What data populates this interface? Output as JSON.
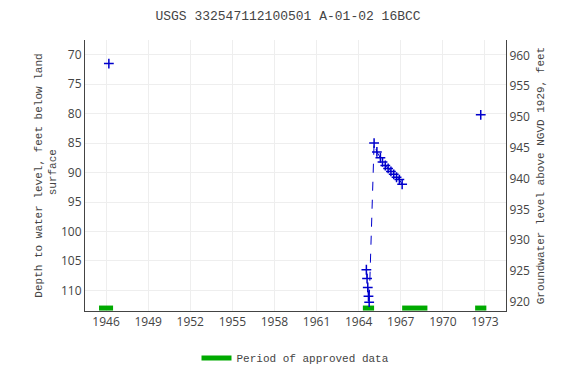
{
  "chart_data": {
    "type": "scatter",
    "title": "USGS 332547112100501 A-01-02 16BCC",
    "y_label": "Depth to water level, feet below land\n surface",
    "y2_label": "Groundwater level above NGVD 1929, feet",
    "xlim": [
      1944.5,
      1974.5
    ],
    "xticks": [
      1946,
      1949,
      1952,
      1955,
      1958,
      1961,
      1964,
      1967,
      1970,
      1973
    ],
    "ylim": [
      113.5,
      67.5
    ],
    "yticks": [
      70,
      75,
      80,
      85,
      90,
      95,
      100,
      105,
      110
    ],
    "y2lim": [
      918.5,
      962.5
    ],
    "y2ticks": [
      960,
      955,
      950,
      945,
      940,
      935,
      930,
      925,
      920
    ],
    "grid": true,
    "legend": "bottom",
    "series": [
      {
        "name": "Period of approved data",
        "type": "bar",
        "orientation": "horizontal",
        "color": "#00aa00",
        "y": 113.0,
        "x_start": [
          1945.5,
          1964.3,
          1967.1,
          1972.3
        ],
        "x_end": [
          1946.5,
          1965.1,
          1968.9,
          1973.1
        ]
      },
      {
        "type": "line",
        "line_style": "dashed",
        "marker": "plus",
        "color": "#0000cc",
        "x": [
          1964.55,
          1964.6,
          1964.65,
          1964.7,
          1964.75,
          1965.1,
          1965.3,
          1965.55,
          1965.7,
          1965.9,
          1966.1,
          1966.3,
          1966.5,
          1966.7,
          1966.9,
          1967.1
        ],
        "values": [
          106.5,
          108.0,
          109.5,
          111.0,
          112.0,
          85.0,
          86.5,
          87.5,
          88.2,
          88.8,
          89.3,
          89.8,
          90.3,
          90.8,
          91.2,
          92.0
        ]
      },
      {
        "type": "scatter",
        "marker": "plus",
        "color": "#0000cc",
        "x": [
          1946.2,
          1972.7
        ],
        "values": [
          71.5,
          80.2
        ]
      }
    ]
  }
}
